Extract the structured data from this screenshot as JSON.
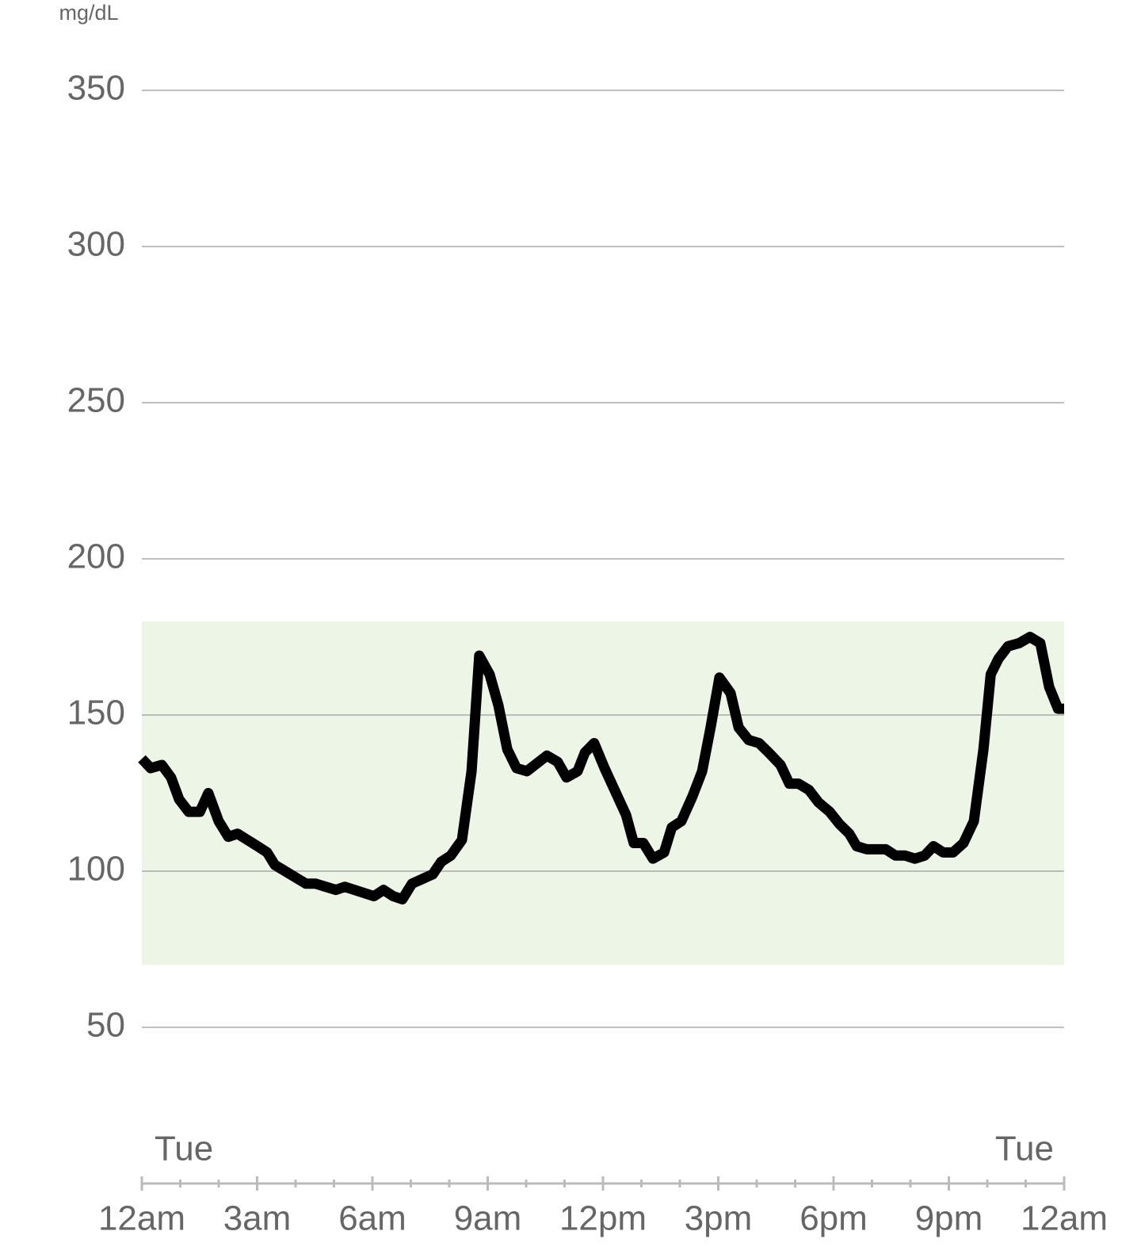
{
  "chart_data": {
    "type": "line",
    "y_unit_label": "mg/dL",
    "color": "#000000",
    "target_range": [
      70,
      180
    ],
    "target_color": "#ecf5e6",
    "grid": true,
    "ylim": [
      0,
      375
    ],
    "yticks": [
      50,
      100,
      150,
      200,
      250,
      300,
      350
    ],
    "xlim": [
      0,
      24
    ],
    "xticks": [
      {
        "value": 0,
        "label": "12am"
      },
      {
        "value": 3,
        "label": "3am"
      },
      {
        "value": 6,
        "label": "6am"
      },
      {
        "value": 9,
        "label": "9am"
      },
      {
        "value": 12,
        "label": "12pm"
      },
      {
        "value": 15,
        "label": "3pm"
      },
      {
        "value": 18,
        "label": "6pm"
      },
      {
        "value": 21,
        "label": "9pm"
      },
      {
        "value": 24,
        "label": "12am"
      }
    ],
    "xminorticks": [
      1,
      2,
      4,
      5,
      7,
      8,
      10,
      11,
      13,
      14,
      16,
      17,
      19,
      20,
      22,
      23
    ],
    "day_labels": [
      {
        "value": 0,
        "label": "Tue"
      },
      {
        "value": 24,
        "label": "Tue"
      }
    ],
    "x": [
      0,
      0.23,
      0.52,
      0.76,
      0.97,
      1.22,
      1.51,
      1.73,
      2.0,
      2.25,
      2.49,
      3.01,
      3.26,
      3.46,
      3.73,
      4.27,
      4.52,
      5.05,
      5.28,
      6.04,
      6.29,
      6.54,
      6.78,
      7.03,
      7.57,
      7.79,
      8.04,
      8.33,
      8.58,
      8.78,
      9.05,
      9.28,
      9.51,
      9.75,
      10.02,
      10.54,
      10.82,
      11.05,
      11.34,
      11.53,
      11.77,
      12.04,
      12.6,
      12.8,
      13.05,
      13.3,
      13.59,
      13.79,
      14.04,
      14.33,
      14.58,
      14.8,
      15.03,
      15.32,
      15.53,
      15.79,
      16.06,
      16.31,
      16.62,
      16.85,
      17.09,
      17.36,
      17.61,
      17.9,
      18.16,
      18.41,
      18.6,
      18.87,
      19.36,
      19.61,
      19.86,
      20.12,
      20.37,
      20.6,
      20.85,
      21.11,
      21.38,
      21.65,
      21.9,
      22.09,
      22.29,
      22.54,
      22.83,
      23.11,
      23.38,
      23.61,
      23.84,
      24
    ],
    "values": [
      136,
      133,
      134,
      130,
      123,
      119,
      119,
      125,
      116,
      111,
      112,
      108,
      106,
      102,
      100,
      96,
      96,
      94,
      95,
      92,
      94,
      92,
      91,
      96,
      99,
      103,
      105,
      110,
      132,
      169,
      163,
      153,
      139,
      133,
      132,
      137,
      135,
      130,
      132,
      138,
      141,
      133,
      118,
      109,
      109,
      104,
      106,
      114,
      116,
      124,
      132,
      146,
      162,
      157,
      146,
      142,
      141,
      138,
      134,
      128,
      128,
      126,
      122,
      119,
      115,
      112,
      108,
      107,
      107,
      105,
      105,
      104,
      105,
      108,
      106,
      106,
      109,
      116,
      139,
      163,
      168,
      172,
      173,
      175,
      173,
      159,
      152,
      152
    ]
  }
}
